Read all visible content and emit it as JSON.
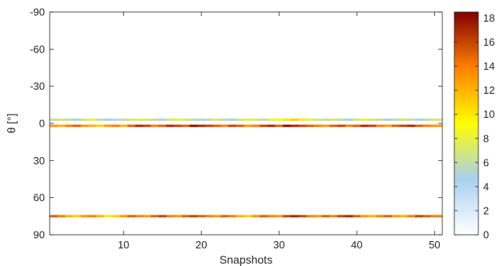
{
  "chart_data": {
    "type": "heatmap",
    "title": "",
    "xlabel": "Snapshots",
    "ylabel": "θ [°]",
    "xlim": [
      0.5,
      51
    ],
    "ylim": [
      -90,
      90
    ],
    "y_reversed": true,
    "x_ticks": [
      10,
      20,
      30,
      40,
      50
    ],
    "y_ticks": [
      -90,
      -60,
      -30,
      0,
      30,
      60,
      90
    ],
    "x_tick_labels": [
      "10",
      "20",
      "30",
      "40",
      "50"
    ],
    "y_tick_labels": [
      "-90",
      "-60",
      "-30",
      "0",
      "30",
      "60",
      "90"
    ],
    "colorbar": {
      "range": [
        0,
        18.5
      ],
      "ticks": [
        0,
        2,
        4,
        6,
        8,
        10,
        12,
        14,
        16,
        18
      ],
      "tick_labels": [
        "0",
        "2",
        "4",
        "6",
        "8",
        "10",
        "12",
        "14",
        "16",
        "18"
      ]
    },
    "colormap": [
      "#ffffff",
      "#a8d0f0",
      "#ffff00",
      "#ff8000",
      "#800000"
    ],
    "grid": false,
    "bands": [
      {
        "theta": -3,
        "snapshots": [
          1,
          2,
          3,
          4,
          5,
          6,
          7,
          8,
          9,
          10,
          11,
          12,
          13,
          14,
          15,
          16,
          17,
          18,
          19,
          20,
          21,
          22,
          23,
          24,
          25,
          26,
          27,
          28,
          29,
          30,
          31,
          32,
          33,
          34,
          35,
          36,
          37,
          38,
          39,
          40,
          41,
          42,
          43,
          44,
          45,
          46,
          47,
          48,
          49,
          50
        ],
        "values": [
          6,
          7,
          6,
          5,
          7,
          8,
          6,
          5,
          4,
          6,
          7,
          8,
          7,
          6,
          5,
          7,
          8,
          7,
          6,
          5,
          6,
          7,
          6,
          5,
          7,
          8,
          7,
          6,
          8,
          9,
          10,
          11,
          10,
          8,
          7,
          6,
          7,
          6,
          5,
          7,
          8,
          7,
          6,
          5,
          6,
          7,
          6,
          5,
          6,
          7
        ]
      },
      {
        "theta": 2,
        "snapshots": [
          1,
          2,
          3,
          4,
          5,
          6,
          7,
          8,
          9,
          10,
          11,
          12,
          13,
          14,
          15,
          16,
          17,
          18,
          19,
          20,
          21,
          22,
          23,
          24,
          25,
          26,
          27,
          28,
          29,
          30,
          31,
          32,
          33,
          34,
          35,
          36,
          37,
          38,
          39,
          40,
          41,
          42,
          43,
          44,
          45,
          46,
          47,
          48,
          49,
          50
        ],
        "values": [
          13,
          12,
          14,
          15,
          13,
          12,
          11,
          13,
          14,
          12,
          15,
          17,
          16,
          14,
          15,
          17,
          16,
          15,
          18,
          17,
          16,
          15,
          14,
          16,
          15,
          13,
          14,
          16,
          17,
          15,
          18,
          17,
          16,
          15,
          14,
          13,
          15,
          16,
          14,
          15,
          17,
          16,
          14,
          13,
          15,
          16,
          17,
          15,
          14,
          13
        ]
      },
      {
        "theta": 75,
        "snapshots": [
          1,
          2,
          3,
          4,
          5,
          6,
          7,
          8,
          9,
          10,
          11,
          12,
          13,
          14,
          15,
          16,
          17,
          18,
          19,
          20,
          21,
          22,
          23,
          24,
          25,
          26,
          27,
          28,
          29,
          30,
          31,
          32,
          33,
          34,
          35,
          36,
          37,
          38,
          39,
          40,
          41,
          42,
          43,
          44,
          45,
          46,
          47,
          48,
          49,
          50
        ],
        "values": [
          15,
          14,
          12,
          11,
          13,
          14,
          12,
          10,
          11,
          13,
          15,
          14,
          13,
          15,
          16,
          14,
          13,
          15,
          16,
          15,
          14,
          13,
          15,
          14,
          12,
          11,
          13,
          15,
          14,
          13,
          16,
          17,
          16,
          14,
          13,
          15,
          14,
          16,
          17,
          15,
          13,
          12,
          14,
          15,
          13,
          12,
          14,
          16,
          15,
          14
        ]
      }
    ]
  }
}
